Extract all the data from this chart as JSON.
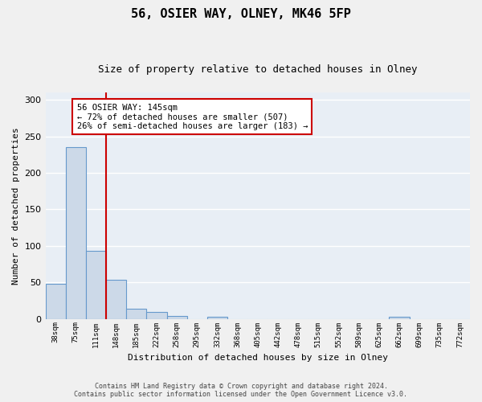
{
  "title": "56, OSIER WAY, OLNEY, MK46 5FP",
  "subtitle": "Size of property relative to detached houses in Olney",
  "xlabel": "Distribution of detached houses by size in Olney",
  "ylabel": "Number of detached properties",
  "bar_labels": [
    "38sqm",
    "75sqm",
    "111sqm",
    "148sqm",
    "185sqm",
    "222sqm",
    "258sqm",
    "295sqm",
    "332sqm",
    "368sqm",
    "405sqm",
    "442sqm",
    "478sqm",
    "515sqm",
    "552sqm",
    "589sqm",
    "625sqm",
    "662sqm",
    "699sqm",
    "735sqm",
    "772sqm"
  ],
  "bar_values": [
    48,
    235,
    93,
    53,
    14,
    9,
    4,
    0,
    3,
    0,
    0,
    0,
    0,
    0,
    0,
    0,
    0,
    3,
    0,
    0,
    0
  ],
  "bar_color": "#ccd9e8",
  "bar_edge_color": "#6699cc",
  "property_label": "56 OSIER WAY: 145sqm",
  "annotation_line1": "← 72% of detached houses are smaller (507)",
  "annotation_line2": "26% of semi-detached houses are larger (183) →",
  "vline_color": "#cc0000",
  "vline_position": 2.5,
  "annotation_box_color": "#ffffff",
  "annotation_box_edge": "#cc0000",
  "footer_line1": "Contains HM Land Registry data © Crown copyright and database right 2024.",
  "footer_line2": "Contains public sector information licensed under the Open Government Licence v3.0.",
  "ylim": [
    0,
    310
  ],
  "background_color": "#e8eef5",
  "fig_background_color": "#f0f0f0",
  "grid_color": "#ffffff"
}
